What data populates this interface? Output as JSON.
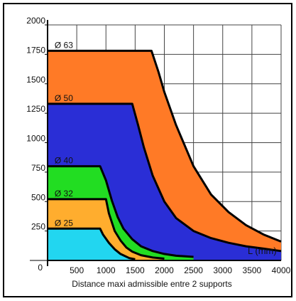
{
  "chart_data": {
    "type": "area",
    "caption": "Distance maxi admissible entre 2 supports",
    "xlabel": "L (mm)",
    "ylabel": "",
    "xlim": [
      0,
      4000
    ],
    "ylim": [
      0,
      2000
    ],
    "x_ticks": [
      500,
      1000,
      1500,
      2000,
      2500,
      3000,
      3500,
      4000
    ],
    "y_ticks": [
      250,
      500,
      750,
      1000,
      1250,
      1500,
      1750,
      2000
    ],
    "origin_label": "0",
    "grid": true,
    "series": [
      {
        "name": "Ø 63",
        "color": "#ff7a26",
        "x": [
          0,
          1780,
          1900,
          2000,
          2200,
          2500,
          2800,
          3100,
          3400,
          3700,
          4000
        ],
        "y": [
          1780,
          1780,
          1600,
          1430,
          1150,
          800,
          560,
          410,
          300,
          220,
          160
        ]
      },
      {
        "name": "Ø 50",
        "color": "#2a2ed6",
        "x": [
          0,
          1450,
          1550,
          1650,
          1800,
          2000,
          2200,
          2500,
          2800,
          3100,
          3400,
          3700,
          4000
        ],
        "y": [
          1330,
          1330,
          1150,
          960,
          720,
          500,
          360,
          250,
          190,
          150,
          120,
          100,
          80
        ]
      },
      {
        "name": "Ø 40",
        "color": "#22dd22",
        "x": [
          0,
          900,
          1000,
          1100,
          1200,
          1300,
          1450,
          1600,
          1800,
          2000,
          2200,
          2500
        ],
        "y": [
          800,
          800,
          680,
          510,
          370,
          270,
          180,
          120,
          80,
          55,
          40,
          30
        ]
      },
      {
        "name": "Ø 32",
        "color": "#ffad2e",
        "x": [
          0,
          1000,
          1050,
          1150,
          1250,
          1350,
          1450,
          1600,
          1800,
          2000
        ],
        "y": [
          520,
          520,
          400,
          250,
          170,
          110,
          75,
          45,
          25,
          15
        ]
      },
      {
        "name": "Ø 25",
        "color": "#22d6f0",
        "x": [
          0,
          900,
          950,
          1050,
          1150,
          1250,
          1400,
          1500
        ],
        "y": [
          270,
          270,
          220,
          150,
          95,
          55,
          20,
          10
        ]
      }
    ]
  }
}
